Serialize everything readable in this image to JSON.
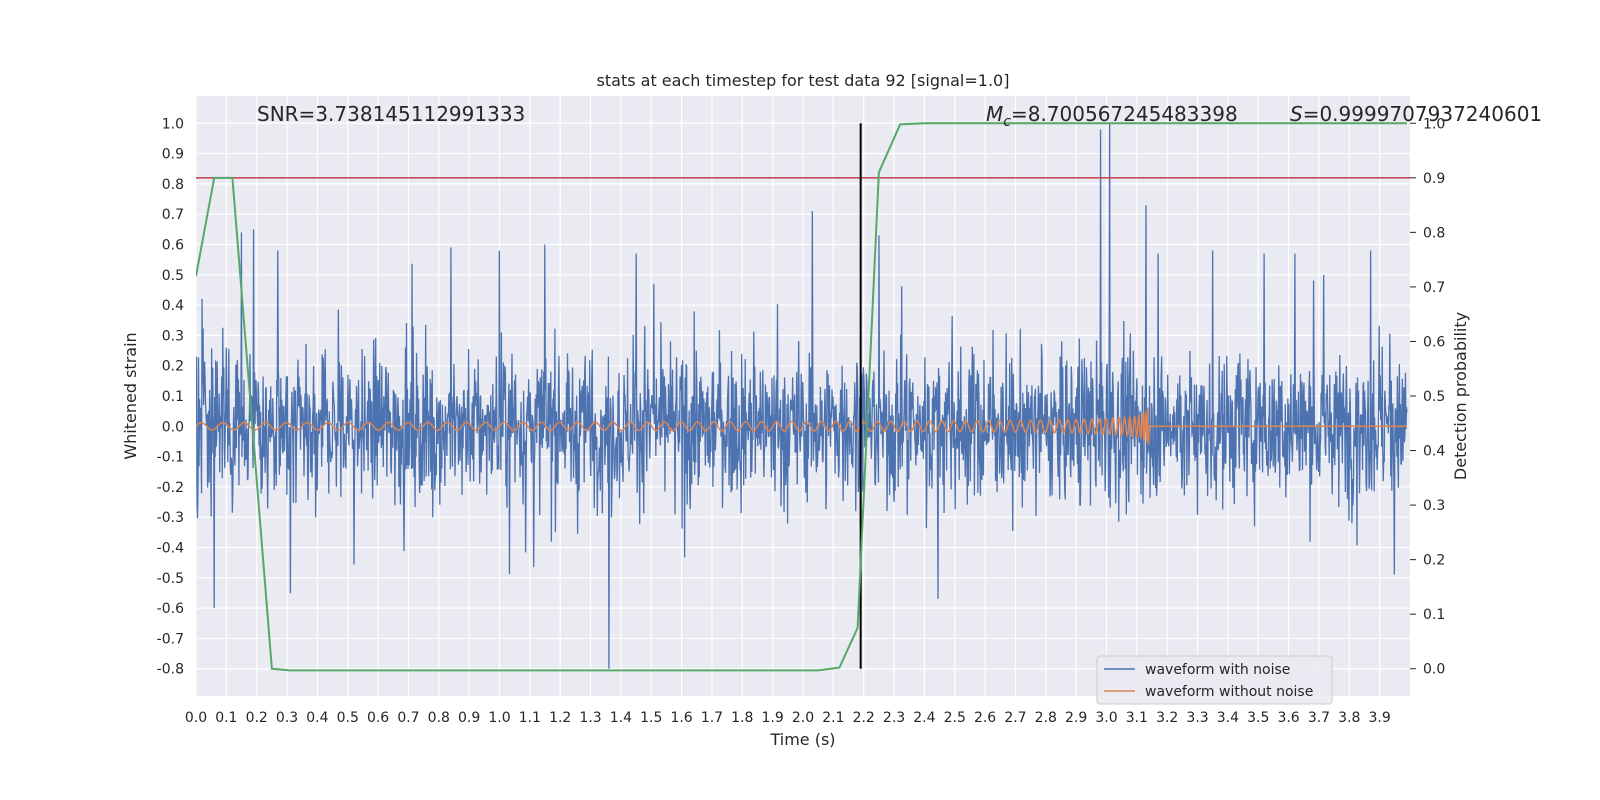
{
  "chart_data": {
    "type": "line",
    "title": "stats at each timestep for test data 92 [signal=1.0]",
    "xlabel": "Time (s)",
    "ylabel": "Whitened strain",
    "y2label": "Detection probability",
    "xlim": [
      0.0,
      4.0
    ],
    "ylim": [
      -0.89,
      1.09
    ],
    "y2lim": [
      -0.05,
      1.05
    ],
    "x_ticks": [
      "0.0",
      "0.1",
      "0.2",
      "0.3",
      "0.4",
      "0.5",
      "0.6",
      "0.7",
      "0.8",
      "0.9",
      "1.0",
      "1.1",
      "1.2",
      "1.3",
      "1.4",
      "1.5",
      "1.6",
      "1.7",
      "1.8",
      "1.9",
      "2.0",
      "2.1",
      "2.2",
      "2.3",
      "2.4",
      "2.5",
      "2.6",
      "2.7",
      "2.8",
      "2.9",
      "3.0",
      "3.1",
      "3.2",
      "3.3",
      "3.4",
      "3.5",
      "3.6",
      "3.7",
      "3.8",
      "3.9"
    ],
    "y_ticks": [
      "1.0",
      "0.9",
      "0.8",
      "0.7",
      "0.6",
      "0.5",
      "0.4",
      "0.3",
      "0.2",
      "0.1",
      "0.0",
      "-0.1",
      "-0.2",
      "-0.3",
      "-0.4",
      "-0.5",
      "-0.6",
      "-0.7",
      "-0.8"
    ],
    "y2_ticks": [
      "1.0",
      "0.9",
      "0.8",
      "0.7",
      "0.6",
      "0.5",
      "0.4",
      "0.3",
      "0.2",
      "0.1",
      "0.0"
    ],
    "grid": true,
    "legend_position": "bottom-right",
    "annotations": {
      "snr": "SNR=3.738145112991333",
      "mc_symbol": "M",
      "mc_sub": "c",
      "mc_value": "=8.700567245483398",
      "s_symbol": "S",
      "s_value": "=0.9999707937240601"
    },
    "threshold_probability": 0.9,
    "merger_time": 2.19,
    "series": [
      {
        "name": "waveform with noise",
        "color": "#4c72b0",
        "axis": "left",
        "note": "noisy whitened strain, approx. range -0.8 to 1.0",
        "peaks": [
          [
            0.02,
            0.42
          ],
          [
            0.15,
            0.64
          ],
          [
            0.19,
            0.65
          ],
          [
            0.27,
            0.58
          ],
          [
            0.84,
            0.59
          ],
          [
            1.0,
            0.58
          ],
          [
            1.15,
            0.6
          ],
          [
            1.36,
            -0.8
          ],
          [
            1.45,
            0.57
          ],
          [
            2.03,
            0.71
          ],
          [
            2.25,
            0.63
          ],
          [
            2.98,
            0.98
          ],
          [
            3.01,
            1.0
          ],
          [
            3.13,
            0.73
          ],
          [
            3.17,
            0.57
          ],
          [
            3.35,
            0.58
          ],
          [
            3.52,
            0.57
          ],
          [
            3.62,
            0.57
          ],
          [
            3.87,
            0.58
          ]
        ]
      },
      {
        "name": "waveform without noise",
        "color": "#dd8452",
        "axis": "left",
        "chirp_end_time": 3.14,
        "peak_amplitude": 0.09
      },
      {
        "name": "detection probability",
        "color": "#55a868",
        "axis": "right",
        "x": [
          0.0,
          0.06,
          0.12,
          0.25,
          0.31,
          2.05,
          2.12,
          2.18,
          2.25,
          2.32,
          2.4,
          3.99
        ],
        "y": [
          0.72,
          0.9,
          0.9,
          0.0,
          -0.003,
          -0.003,
          0.002,
          0.075,
          0.91,
          0.998,
          1.0,
          1.0
        ]
      }
    ],
    "threshold_color": "#c44e52",
    "merger_line_color": "#000000"
  }
}
